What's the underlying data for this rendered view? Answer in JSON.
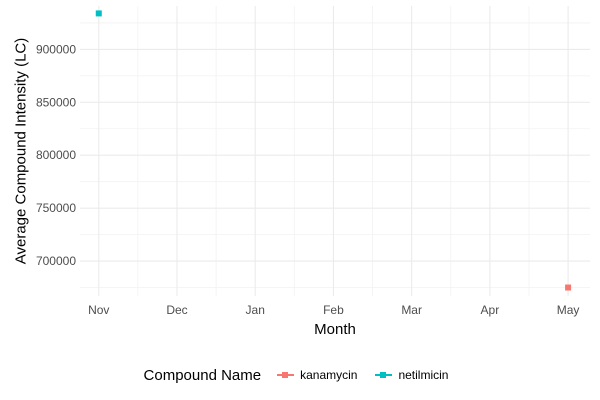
{
  "chart_data": {
    "type": "line",
    "xlabel": "Month",
    "ylabel": "Average Compound Intensity (LC)",
    "categories": [
      "Nov",
      "Dec",
      "Jan",
      "Feb",
      "Mar",
      "Apr",
      "May"
    ],
    "yticks": [
      "700000",
      "750000",
      "800000",
      "850000",
      "900000"
    ],
    "ylim": [
      667000,
      941000
    ],
    "grid": true,
    "legend_position": "bottom",
    "legend_title": "Compound Name",
    "series": [
      {
        "name": "kanamycin",
        "color": "#F8766D",
        "points": [
          {
            "x": "May",
            "y": 675000
          }
        ]
      },
      {
        "name": "netilmicin",
        "color": "#00BFC4",
        "points": [
          {
            "x": "Nov",
            "y": 934000
          }
        ]
      }
    ]
  }
}
